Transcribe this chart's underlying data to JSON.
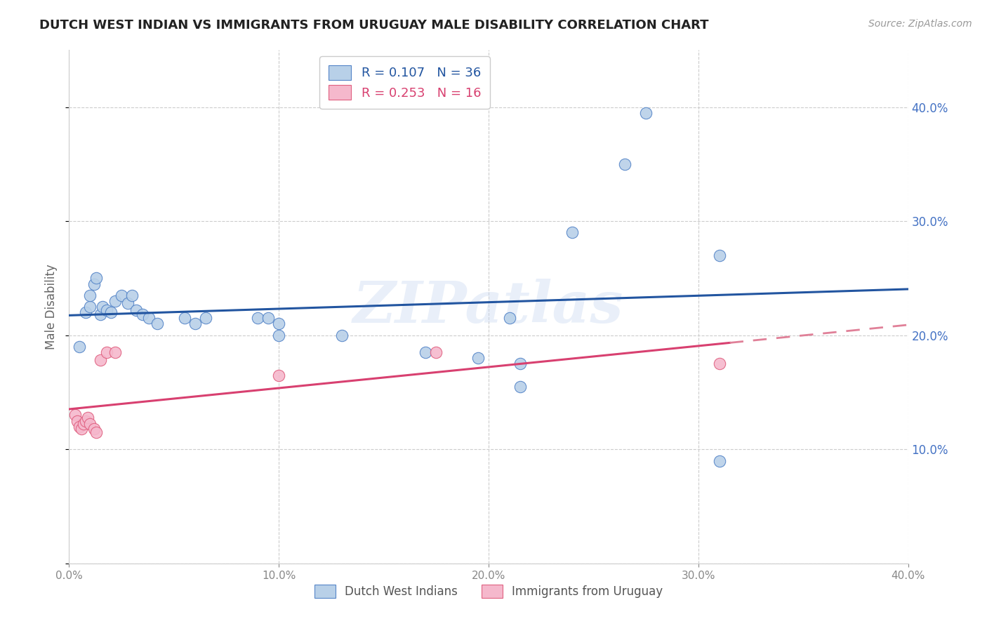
{
  "title": "DUTCH WEST INDIAN VS IMMIGRANTS FROM URUGUAY MALE DISABILITY CORRELATION CHART",
  "source": "Source: ZipAtlas.com",
  "ylabel": "Male Disability",
  "xlim": [
    0.0,
    0.4
  ],
  "ylim": [
    0.0,
    0.45
  ],
  "x_ticks": [
    0.0,
    0.1,
    0.2,
    0.3,
    0.4
  ],
  "y_ticks": [
    0.0,
    0.1,
    0.2,
    0.3,
    0.4
  ],
  "right_y_ticks": [
    0.1,
    0.2,
    0.3,
    0.4
  ],
  "blue_label": "Dutch West Indians",
  "pink_label": "Immigrants from Uruguay",
  "blue_R": "0.107",
  "blue_N": "36",
  "pink_R": "0.253",
  "pink_N": "16",
  "blue_scatter": [
    [
      0.005,
      0.19
    ],
    [
      0.008,
      0.22
    ],
    [
      0.01,
      0.225
    ],
    [
      0.01,
      0.235
    ],
    [
      0.012,
      0.245
    ],
    [
      0.013,
      0.25
    ],
    [
      0.015,
      0.218
    ],
    [
      0.016,
      0.225
    ],
    [
      0.018,
      0.222
    ],
    [
      0.02,
      0.22
    ],
    [
      0.022,
      0.23
    ],
    [
      0.025,
      0.235
    ],
    [
      0.028,
      0.228
    ],
    [
      0.03,
      0.235
    ],
    [
      0.032,
      0.222
    ],
    [
      0.035,
      0.218
    ],
    [
      0.038,
      0.215
    ],
    [
      0.042,
      0.21
    ],
    [
      0.055,
      0.215
    ],
    [
      0.06,
      0.21
    ],
    [
      0.065,
      0.215
    ],
    [
      0.09,
      0.215
    ],
    [
      0.095,
      0.215
    ],
    [
      0.1,
      0.21
    ],
    [
      0.1,
      0.2
    ],
    [
      0.13,
      0.2
    ],
    [
      0.17,
      0.185
    ],
    [
      0.195,
      0.18
    ],
    [
      0.21,
      0.215
    ],
    [
      0.215,
      0.175
    ],
    [
      0.215,
      0.155
    ],
    [
      0.24,
      0.29
    ],
    [
      0.265,
      0.35
    ],
    [
      0.275,
      0.395
    ],
    [
      0.31,
      0.27
    ],
    [
      0.31,
      0.09
    ]
  ],
  "pink_scatter": [
    [
      0.003,
      0.13
    ],
    [
      0.004,
      0.125
    ],
    [
      0.005,
      0.12
    ],
    [
      0.006,
      0.118
    ],
    [
      0.007,
      0.122
    ],
    [
      0.008,
      0.125
    ],
    [
      0.009,
      0.128
    ],
    [
      0.01,
      0.122
    ],
    [
      0.012,
      0.118
    ],
    [
      0.013,
      0.115
    ],
    [
      0.015,
      0.178
    ],
    [
      0.018,
      0.185
    ],
    [
      0.022,
      0.185
    ],
    [
      0.1,
      0.165
    ],
    [
      0.175,
      0.185
    ],
    [
      0.31,
      0.175
    ]
  ],
  "blue_color": "#b8d0e8",
  "blue_edge_color": "#5585c8",
  "blue_line_color": "#2255a0",
  "pink_color": "#f5b8cc",
  "pink_edge_color": "#e06080",
  "pink_line_color": "#d84070",
  "pink_dash_color": "#e08098",
  "watermark": "ZIPatlas",
  "background_color": "#ffffff",
  "grid_color": "#cccccc"
}
